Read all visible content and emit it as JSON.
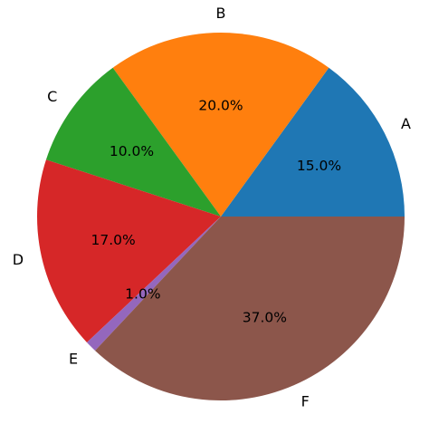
{
  "chart_data": {
    "type": "pie",
    "title": "",
    "start_angle_deg": 0,
    "direction": "counterclockwise",
    "slices": [
      {
        "label": "A",
        "value": 15.0,
        "pct_label": "15.0%",
        "color": "#1f77b4"
      },
      {
        "label": "B",
        "value": 20.0,
        "pct_label": "20.0%",
        "color": "#ff7f0e"
      },
      {
        "label": "C",
        "value": 10.0,
        "pct_label": "10.0%",
        "color": "#2ca02c"
      },
      {
        "label": "D",
        "value": 17.0,
        "pct_label": "17.0%",
        "color": "#d62728"
      },
      {
        "label": "E",
        "value": 1.0,
        "pct_label": "1.0%",
        "color": "#9467bd"
      },
      {
        "label": "F",
        "value": 37.0,
        "pct_label": "37.0%",
        "color": "#8c564b"
      }
    ]
  }
}
